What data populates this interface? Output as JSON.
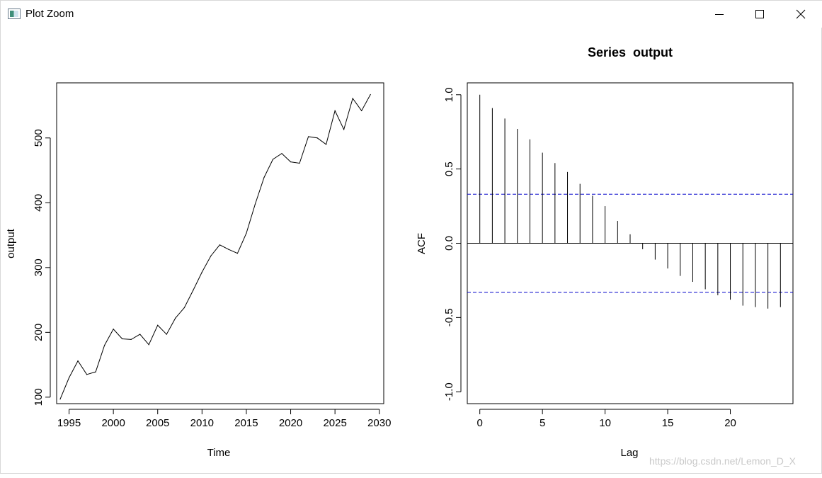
{
  "window": {
    "title": "Plot Zoom",
    "controls": {
      "minimize": "minimize-icon",
      "maximize": "maximize-icon",
      "close": "close-icon"
    }
  },
  "watermark": "https://blog.csdn.net/Lemon_D_X",
  "chart_data": [
    {
      "type": "line",
      "title": "",
      "xlabel": "Time",
      "ylabel": "output",
      "xlim": [
        1993.6,
        2030.5
      ],
      "ylim": [
        90,
        585
      ],
      "x_ticks": [
        1995,
        2000,
        2005,
        2010,
        2015,
        2020,
        2025,
        2030
      ],
      "y_ticks": [
        100,
        200,
        300,
        400,
        500
      ],
      "grid": false,
      "series": [
        {
          "x": [
            1994,
            1995,
            1996,
            1997,
            1998,
            1999,
            2000,
            2001,
            2002,
            2003,
            2004,
            2005,
            2006,
            2007,
            2008,
            2009,
            2010,
            2011,
            2012,
            2013,
            2014,
            2015,
            2016,
            2017,
            2018,
            2019,
            2020,
            2021,
            2022,
            2023,
            2024,
            2025,
            2026,
            2027,
            2028,
            2029
          ],
          "values": [
            97,
            130,
            156,
            135,
            139,
            180,
            205,
            190,
            189,
            197,
            181,
            211,
            197,
            222,
            238,
            265,
            293,
            318,
            335,
            328,
            322,
            353,
            398,
            439,
            467,
            476,
            463,
            461,
            502,
            500,
            490,
            542,
            513,
            561,
            542,
            567
          ]
        }
      ],
      "line_color": "#000000"
    },
    {
      "type": "bar",
      "title": "Series  output",
      "xlabel": "Lag",
      "ylabel": "ACF",
      "xlim": [
        -1,
        25
      ],
      "ylim": [
        -1.08,
        1.08
      ],
      "x_ticks": [
        0,
        5,
        10,
        15,
        20
      ],
      "y_ticks": [
        -1.0,
        -0.5,
        0.0,
        0.5,
        1.0
      ],
      "grid": false,
      "lags": [
        0,
        1,
        2,
        3,
        4,
        5,
        6,
        7,
        8,
        9,
        10,
        11,
        12,
        13,
        14,
        15,
        16,
        17,
        18,
        19,
        20,
        21,
        22,
        23,
        24
      ],
      "values": [
        1.0,
        0.91,
        0.84,
        0.77,
        0.7,
        0.61,
        0.54,
        0.48,
        0.4,
        0.32,
        0.25,
        0.15,
        0.06,
        -0.04,
        -0.11,
        -0.17,
        -0.22,
        -0.26,
        -0.31,
        -0.35,
        -0.38,
        -0.42,
        -0.43,
        -0.44,
        -0.43
      ],
      "confidence_bounds": [
        0.33,
        -0.33
      ],
      "bound_color": "#0000cc",
      "bar_color": "#000000"
    }
  ]
}
